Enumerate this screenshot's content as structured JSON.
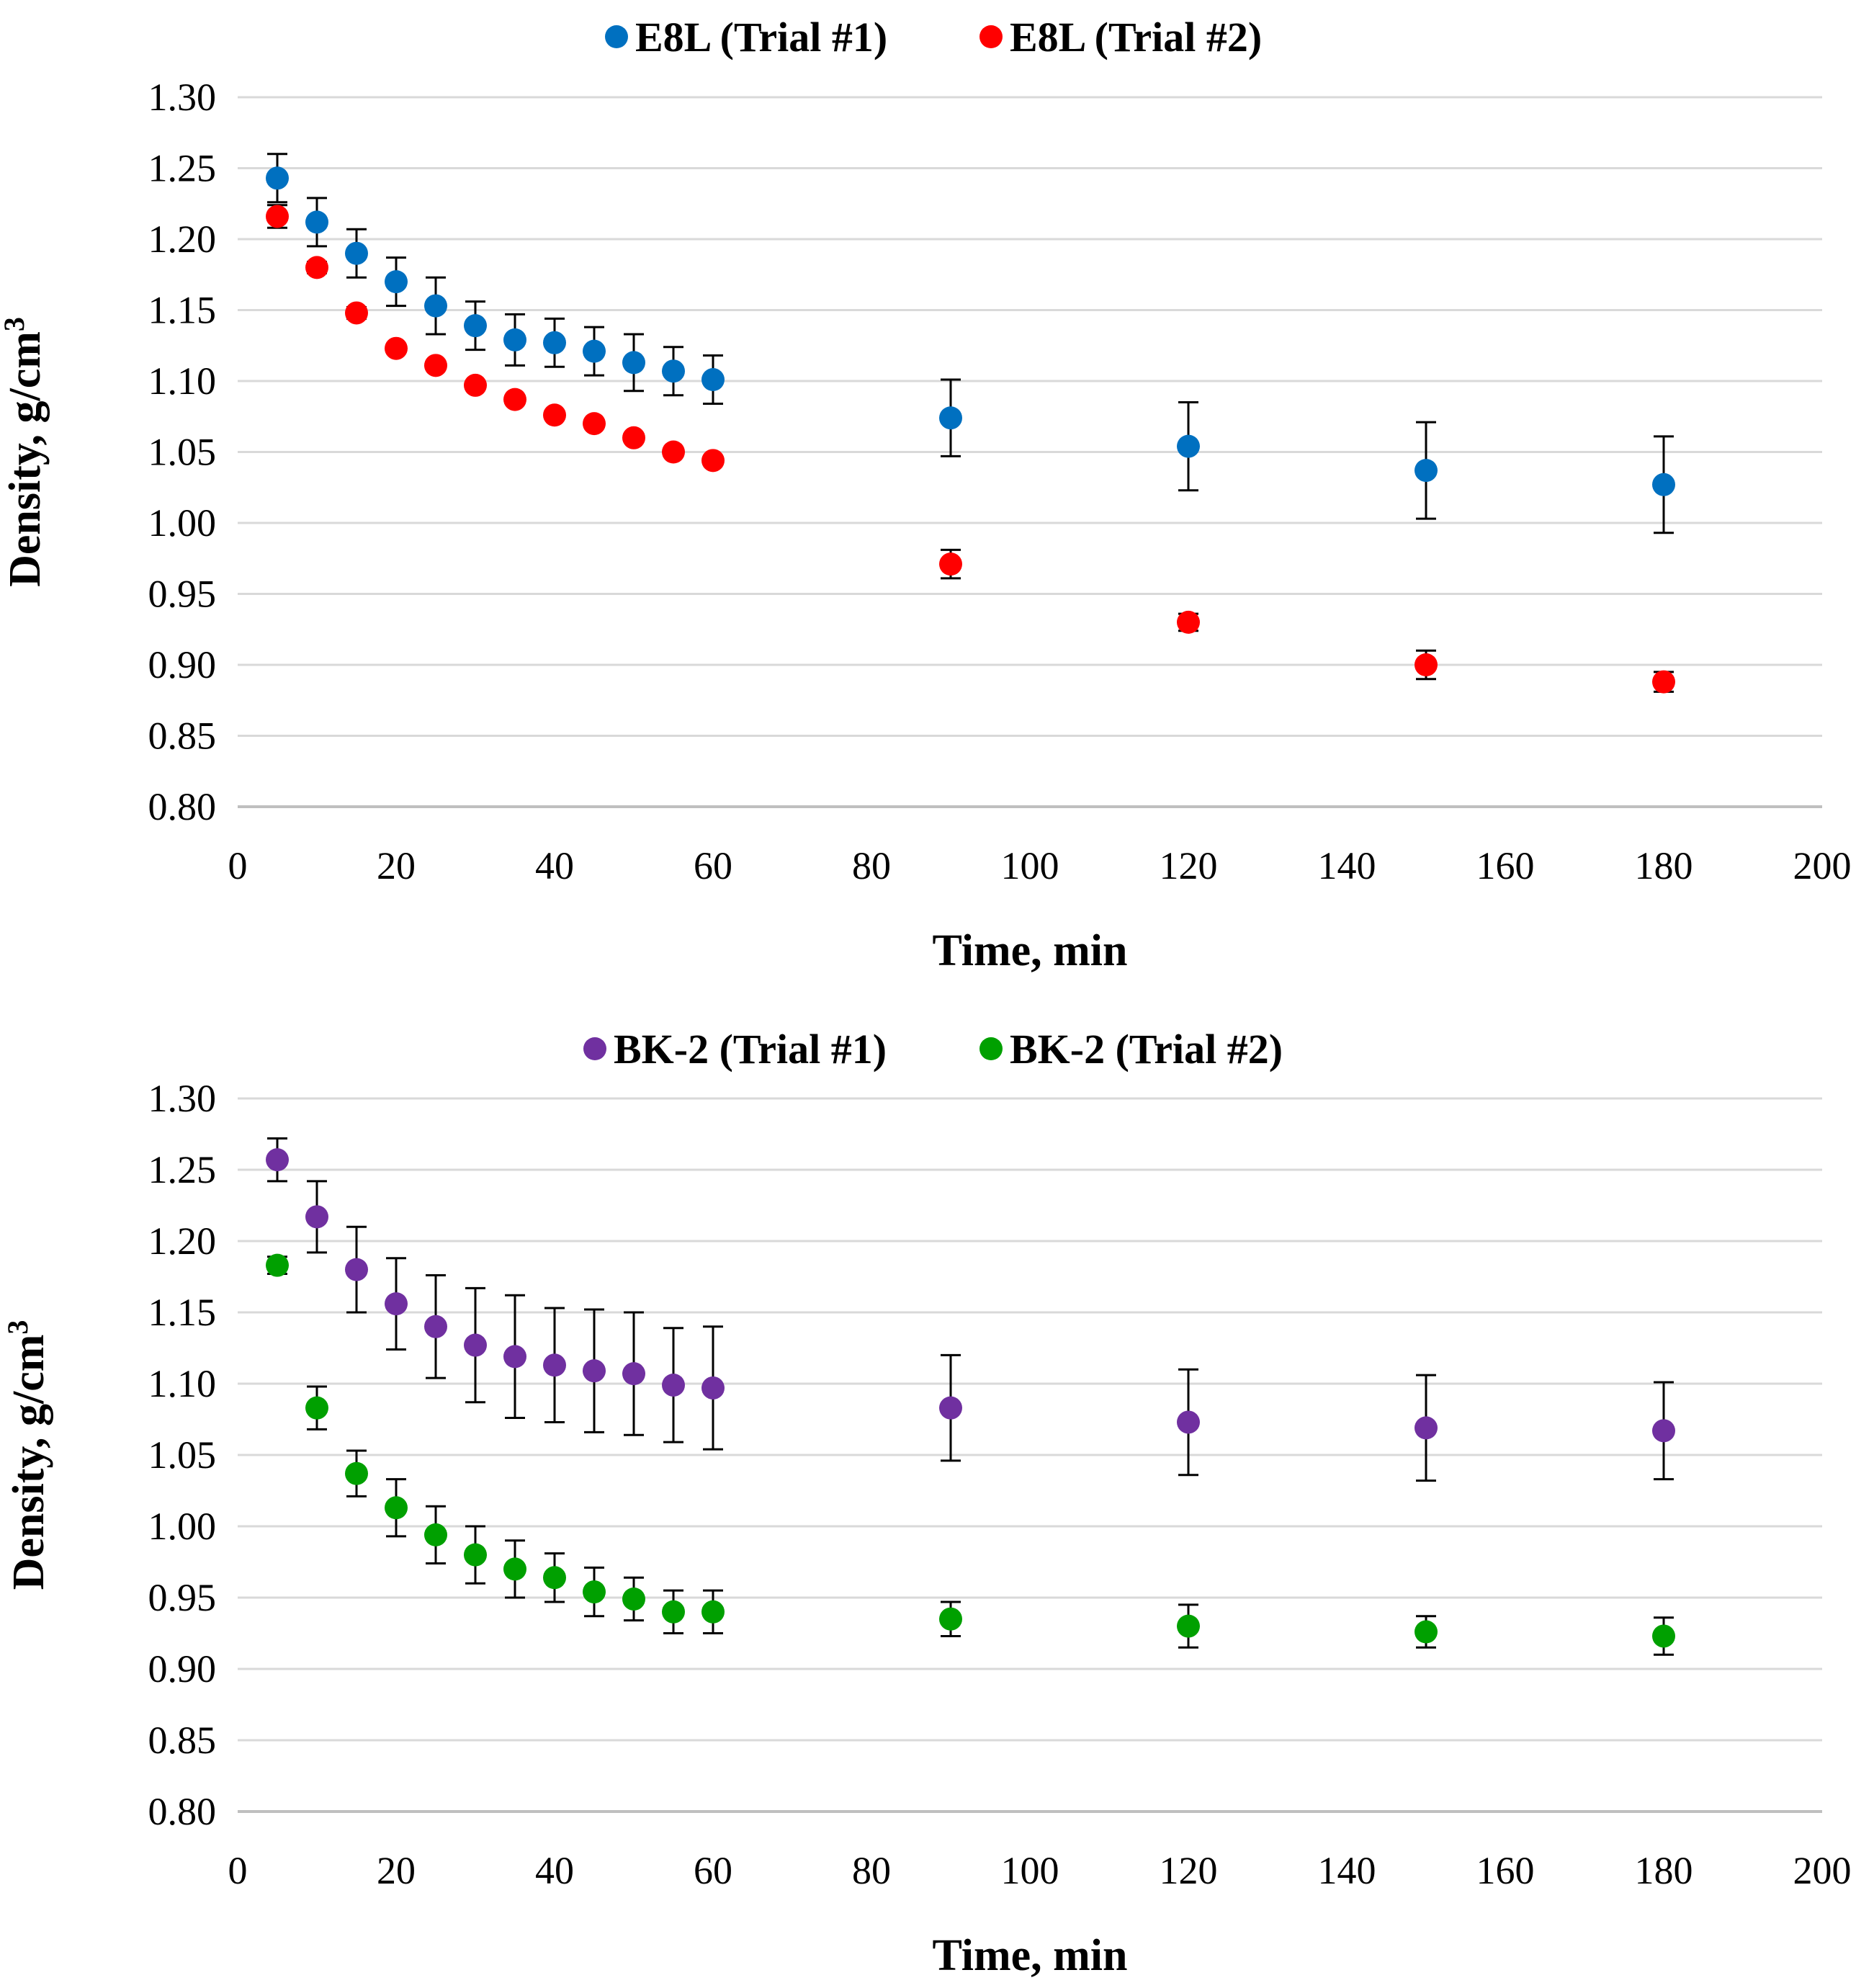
{
  "chart_data": [
    {
      "type": "scatter",
      "xlabel": "Time, min",
      "ylabel": "Density, g/cm",
      "ylabel_sup": "3",
      "xlim": [
        0,
        200
      ],
      "ylim": [
        0.8,
        1.3
      ],
      "xticks": [
        "0",
        "20",
        "40",
        "60",
        "80",
        "100",
        "120",
        "140",
        "160",
        "180",
        "200"
      ],
      "yticks": [
        "0.80",
        "0.85",
        "0.90",
        "0.95",
        "1.00",
        "1.05",
        "1.10",
        "1.15",
        "1.20",
        "1.25",
        "1.30"
      ],
      "grid": true,
      "legend_position": "top-center",
      "x": [
        5,
        10,
        15,
        20,
        25,
        30,
        35,
        40,
        45,
        50,
        55,
        60,
        90,
        120,
        150,
        180
      ],
      "series": [
        {
          "name": "E8L (Trial #1)",
          "color": "#0070C0",
          "values": [
            1.243,
            1.212,
            1.19,
            1.17,
            1.153,
            1.139,
            1.129,
            1.127,
            1.121,
            1.113,
            1.107,
            1.101,
            1.074,
            1.054,
            1.037,
            1.027
          ],
          "errors": [
            0.017,
            0.017,
            0.017,
            0.017,
            0.02,
            0.017,
            0.018,
            0.017,
            0.017,
            0.02,
            0.017,
            0.017,
            0.027,
            0.031,
            0.034,
            0.034
          ]
        },
        {
          "name": "E8L (Trial #2)",
          "color": "#FF0000",
          "values": [
            1.216,
            1.18,
            1.148,
            1.123,
            1.111,
            1.097,
            1.087,
            1.076,
            1.07,
            1.06,
            1.05,
            1.044,
            0.971,
            0.93,
            0.9,
            0.888
          ],
          "errors": [
            0.008,
            0.004,
            0.004,
            0.003,
            0.003,
            0.003,
            0.003,
            0.003,
            0.003,
            0.003,
            0.003,
            0.003,
            0.01,
            0.006,
            0.01,
            0.007
          ]
        }
      ]
    },
    {
      "type": "scatter",
      "xlabel": "Time, min",
      "ylabel": "Density, g/cm",
      "ylabel_sup": "3",
      "xlim": [
        0,
        200
      ],
      "ylim": [
        0.8,
        1.3
      ],
      "xticks": [
        "0",
        "20",
        "40",
        "60",
        "80",
        "100",
        "120",
        "140",
        "160",
        "180",
        "200"
      ],
      "yticks": [
        "0.80",
        "0.85",
        "0.90",
        "0.95",
        "1.00",
        "1.05",
        "1.10",
        "1.15",
        "1.20",
        "1.25",
        "1.30"
      ],
      "grid": true,
      "legend_position": "top-center",
      "x": [
        5,
        10,
        15,
        20,
        25,
        30,
        35,
        40,
        45,
        50,
        55,
        60,
        90,
        120,
        150,
        180
      ],
      "series": [
        {
          "name": "BK-2 (Trial #1)",
          "color": "#7030A0",
          "values": [
            1.257,
            1.217,
            1.18,
            1.156,
            1.14,
            1.127,
            1.119,
            1.113,
            1.109,
            1.107,
            1.099,
            1.097,
            1.083,
            1.073,
            1.069,
            1.067
          ],
          "errors": [
            0.015,
            0.025,
            0.03,
            0.032,
            0.036,
            0.04,
            0.043,
            0.04,
            0.043,
            0.043,
            0.04,
            0.043,
            0.037,
            0.037,
            0.037,
            0.034
          ]
        },
        {
          "name": "BK-2 (Trial #2)",
          "color": "#00A000",
          "values": [
            1.183,
            1.083,
            1.037,
            1.013,
            0.994,
            0.98,
            0.97,
            0.964,
            0.954,
            0.949,
            0.94,
            0.94,
            0.935,
            0.93,
            0.926,
            0.923
          ],
          "errors": [
            0.006,
            0.015,
            0.016,
            0.02,
            0.02,
            0.02,
            0.02,
            0.017,
            0.017,
            0.015,
            0.015,
            0.015,
            0.012,
            0.015,
            0.011,
            0.013
          ]
        }
      ]
    }
  ]
}
